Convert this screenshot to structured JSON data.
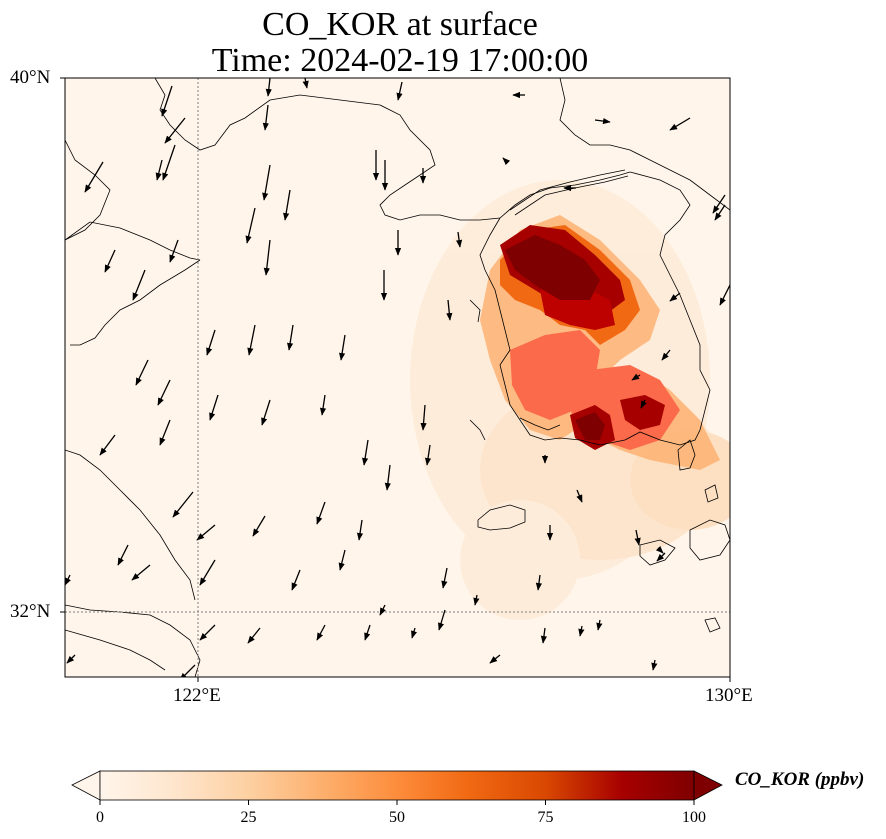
{
  "title": {
    "line1": "CO_KOR at surface",
    "line2": "Time: 2024-02-19 17:00:00"
  },
  "map": {
    "variable": "CO_KOR",
    "level": "surface",
    "lon_range": [
      119,
      134
    ],
    "lat_range": [
      30.5,
      40
    ],
    "lon_ticks": [
      "122°E",
      "130°E"
    ],
    "lat_ticks": [
      "40°N",
      "32°N"
    ],
    "gridlines": "dotted",
    "wind_vectors": "black arrows, predominantly southward / south-westward flow over the Yellow Sea"
  },
  "colorbar": {
    "label": "CO_KOR (ppbv)",
    "ticks": [
      "0",
      "25",
      "50",
      "75",
      "100"
    ],
    "min": 0,
    "max": 100,
    "extend": "both",
    "colormap": [
      "#fff5eb",
      "#fee6ce",
      "#fdd0a2",
      "#fdae6b",
      "#fd8d3c",
      "#f16913",
      "#d94801",
      "#a60000",
      "#7f0000"
    ]
  },
  "colors": {
    "background": "#fff5eb",
    "coastline": "#000000",
    "gridline": "#7f7f7f"
  }
}
